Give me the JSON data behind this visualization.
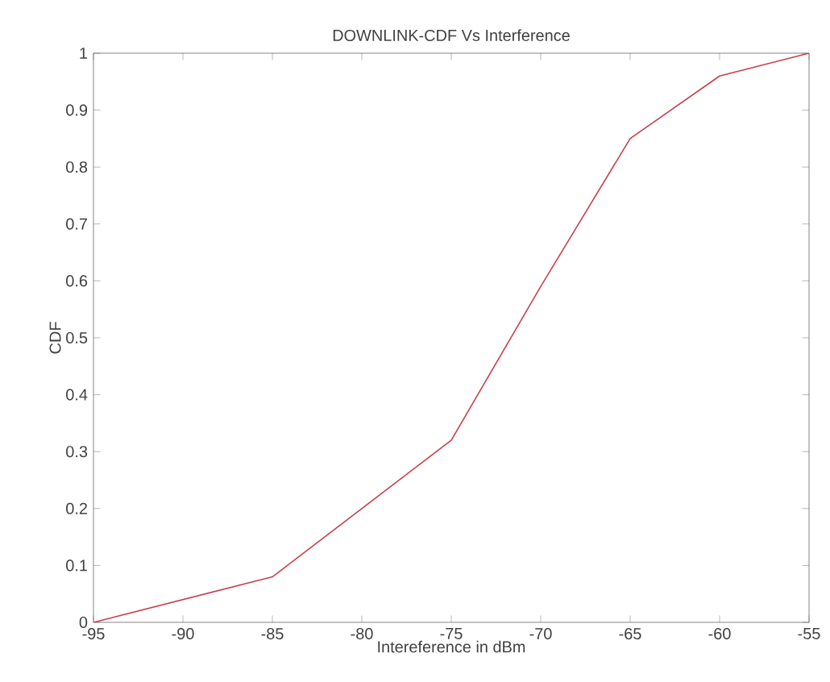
{
  "chart_data": {
    "type": "line",
    "title": "DOWNLINK-CDF Vs Interference",
    "xlabel": "Intereference in dBm",
    "ylabel": "CDF",
    "x": [
      -95,
      -90,
      -85,
      -80,
      -75,
      -70,
      -65,
      -60,
      -55
    ],
    "series": [
      {
        "color": "#c8404c",
        "values": [
          0,
          0.04,
          0.08,
          0.2,
          0.32,
          0.59,
          0.85,
          0.96,
          1
        ]
      }
    ],
    "xlim": [
      -95,
      -55
    ],
    "ylim": [
      0,
      1
    ],
    "xticks": [
      -95,
      -90,
      -85,
      -80,
      -75,
      -70,
      -65,
      -60,
      -55
    ],
    "yticks": [
      0,
      0.1,
      0.2,
      0.3,
      0.4,
      0.5,
      0.6,
      0.7,
      0.8,
      0.9,
      1
    ],
    "grid": false,
    "marker": "none",
    "line_style": "solid"
  }
}
